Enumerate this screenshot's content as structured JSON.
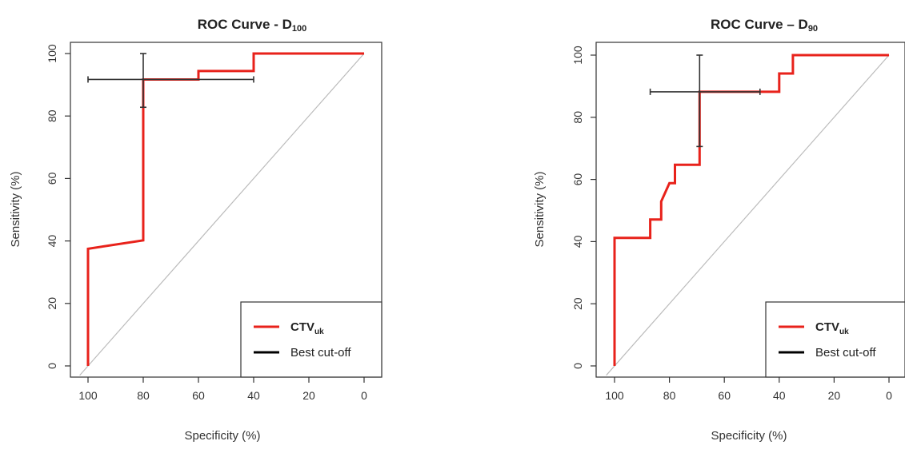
{
  "chart_data": [
    {
      "type": "line",
      "title": "ROC Curve - D",
      "title_subscript": "100",
      "xlabel": "Specificity (%)",
      "ylabel": "Sensitivity (%)",
      "xlim": [
        100,
        0
      ],
      "ylim": [
        0,
        100
      ],
      "x_ticks": [
        "100",
        "80",
        "60",
        "40",
        "20",
        "0"
      ],
      "y_ticks": [
        "0",
        "20",
        "40",
        "60",
        "80",
        "100"
      ],
      "x_tick_values": [
        100,
        80,
        60,
        40,
        20,
        0
      ],
      "y_tick_values": [
        0,
        20,
        40,
        60,
        80,
        100
      ],
      "legend": {
        "position": "bottom-right",
        "entries": [
          {
            "label": "CTV",
            "subscript": "uk",
            "color": "#e8221b"
          },
          {
            "label": "Best cut-off",
            "subscript": "",
            "color": "#000000"
          }
        ]
      },
      "series": [
        {
          "name": "CTV uk",
          "color": "#e8221b",
          "x": [
            100,
            100,
            80,
            80,
            60,
            60,
            40,
            40,
            0
          ],
          "y": [
            0,
            37.5,
            40.2,
            91.7,
            91.7,
            94.4,
            94.4,
            100,
            100
          ]
        }
      ],
      "best_cutoff": {
        "x": 80,
        "y": 91.7,
        "x_err": [
          100,
          40
        ],
        "y_err": [
          82.8,
          100
        ],
        "color": "#333333"
      },
      "diagonal": {
        "x": [
          103,
          0
        ],
        "y": [
          -3,
          100
        ],
        "color": "#bbbbbb"
      }
    },
    {
      "type": "line",
      "title": "ROC Curve – D",
      "title_subscript": "90",
      "xlabel": "Specificity (%)",
      "ylabel": "Sensitivity (%)",
      "xlim": [
        100,
        0
      ],
      "ylim": [
        0,
        100
      ],
      "x_ticks": [
        "100",
        "80",
        "60",
        "40",
        "20",
        "0"
      ],
      "y_ticks": [
        "0",
        "20",
        "40",
        "60",
        "80",
        "100"
      ],
      "x_tick_values": [
        100,
        80,
        60,
        40,
        20,
        0
      ],
      "y_tick_values": [
        0,
        20,
        40,
        60,
        80,
        100
      ],
      "legend": {
        "position": "bottom-right",
        "entries": [
          {
            "label": "CTV",
            "subscript": "uk",
            "color": "#e8221b"
          },
          {
            "label": "Best cut-off",
            "subscript": "",
            "color": "#000000"
          }
        ]
      },
      "series": [
        {
          "name": "CTV uk",
          "color": "#e8221b",
          "x": [
            100,
            100,
            87,
            87,
            84,
            84,
            83,
            83,
            80,
            80,
            78,
            78,
            69,
            69,
            40,
            40,
            37,
            37,
            35,
            35,
            0
          ],
          "y": [
            0,
            41.2,
            41.2,
            47.1,
            47.1,
            47.1,
            47.1,
            52.9,
            58.8,
            58.8,
            58.8,
            64.7,
            64.7,
            88.2,
            88.2,
            94.1,
            94.1,
            94.1,
            94.1,
            100,
            100
          ]
        }
      ],
      "best_cutoff": {
        "x": 69,
        "y": 88.2,
        "x_err": [
          87,
          47
        ],
        "y_err": [
          70.6,
          100
        ],
        "color": "#333333"
      },
      "diagonal": {
        "x": [
          103,
          0
        ],
        "y": [
          -3,
          100
        ],
        "color": "#bbbbbb"
      }
    }
  ]
}
